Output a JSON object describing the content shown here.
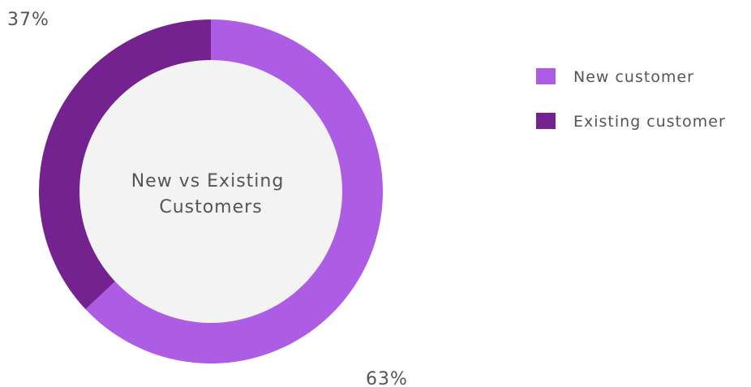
{
  "chart_data": {
    "type": "pie",
    "title_lines": [
      "New vs Existing",
      "Customers"
    ],
    "slices": [
      {
        "name": "New customer",
        "value": 63,
        "label": "63%",
        "color": "#AD5CE4"
      },
      {
        "name": "Existing customer",
        "value": 37,
        "label": "37%",
        "color": "#732290"
      }
    ],
    "center_fill": "#F3F3F3",
    "legend_placement": "top-right"
  }
}
